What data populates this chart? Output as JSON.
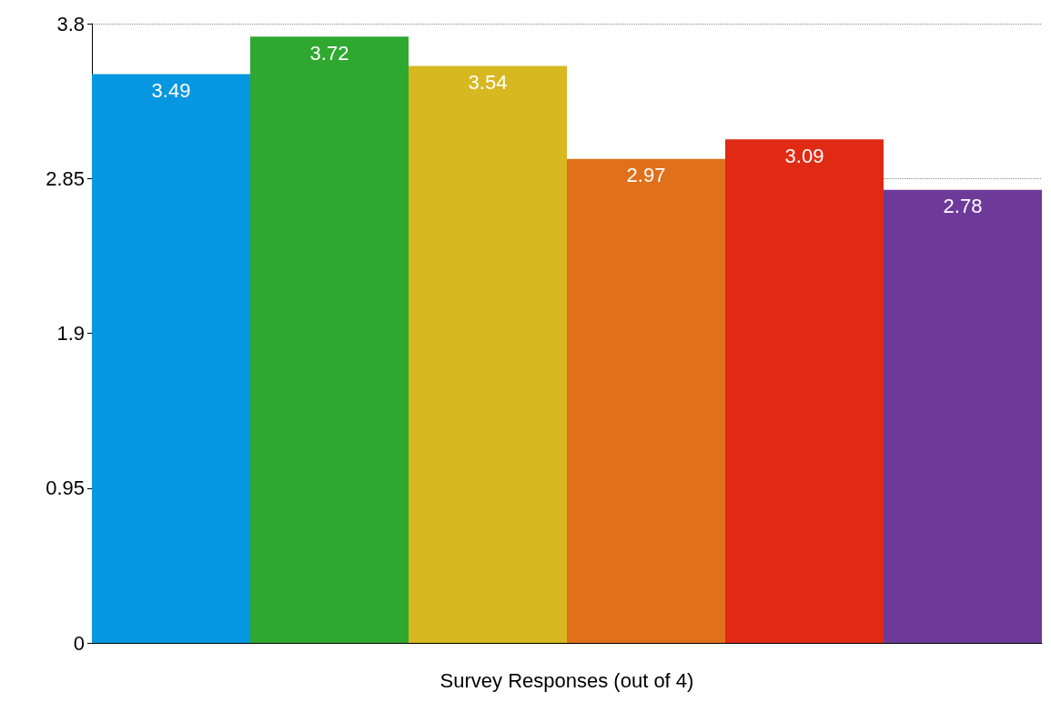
{
  "chart_data": {
    "type": "bar",
    "xlabel": "Survey Responses (out of 4)",
    "categories": [
      null,
      null,
      null,
      null,
      null,
      null
    ],
    "values": [
      3.49,
      3.72,
      3.54,
      2.97,
      3.09,
      2.78
    ],
    "colors": [
      "#0797e0",
      "#2fa82f",
      "#d8b820",
      "#e0701a",
      "#e02a14",
      "#6e3a9a"
    ],
    "ylim": [
      0,
      3.8
    ],
    "yticks": [
      0,
      0.95,
      1.9,
      2.85,
      3.8
    ],
    "grid": "y",
    "line_style": "dotted",
    "data_labels": true
  }
}
